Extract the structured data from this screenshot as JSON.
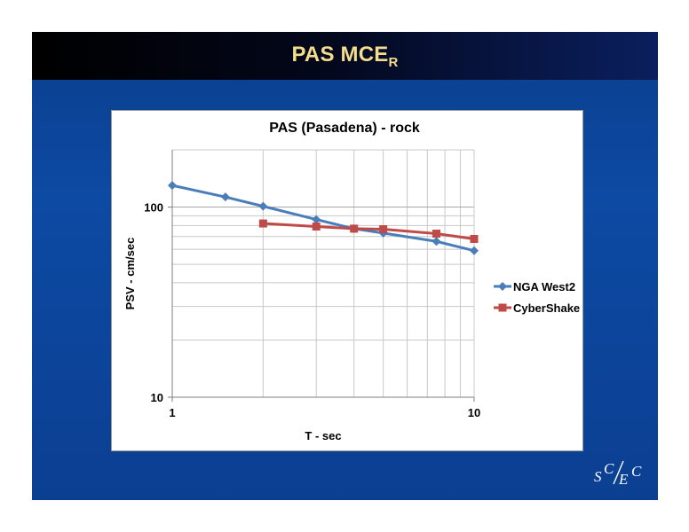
{
  "slide": {
    "title_main": "PAS MCE",
    "title_sub": "R",
    "logo_text": "SCEC"
  },
  "colors": {
    "title_text": "#f3dc8c",
    "background": "#0d4aa3",
    "nga": "#4a7ebb",
    "cybershake": "#be4b48"
  },
  "chart_data": {
    "type": "line",
    "title": "PAS (Pasadena) - rock",
    "xlabel": "T - sec",
    "ylabel": "PSV - cm/sec",
    "xscale": "log",
    "yscale": "log",
    "xlim": [
      1,
      10
    ],
    "ylim": [
      10,
      200
    ],
    "xticks": [
      1,
      10
    ],
    "yticks": [
      10,
      100
    ],
    "grid": true,
    "legend": "right",
    "series": [
      {
        "name": "NGA West2",
        "marker": "diamond",
        "color": "#4a7ebb",
        "x": [
          1,
          1.5,
          2,
          3,
          4,
          5,
          7.5,
          10
        ],
        "y": [
          130,
          113,
          101,
          86,
          77,
          73,
          66,
          59
        ]
      },
      {
        "name": "CyberShake",
        "marker": "square",
        "color": "#be4b48",
        "x": [
          2,
          3,
          4,
          5,
          7.5,
          10
        ],
        "y": [
          82,
          79,
          77,
          76.5,
          72.5,
          68
        ]
      }
    ]
  }
}
